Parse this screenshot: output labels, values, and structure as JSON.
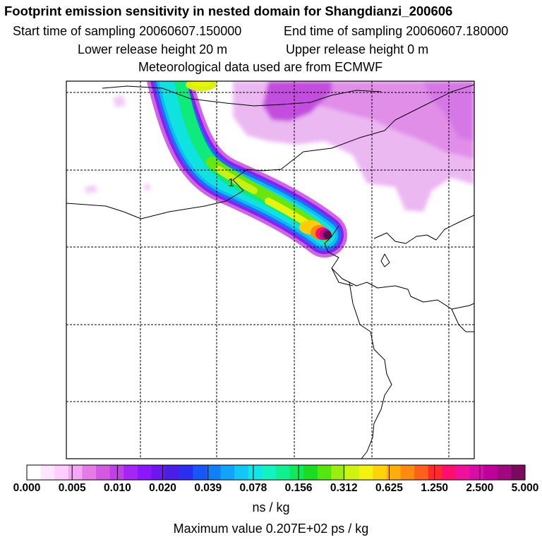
{
  "header": {
    "title": "Footprint emission sensitivity in nested domain for Shangdianzi_200606",
    "start_time": "Start time of sampling 20060607.150000",
    "end_time": "End time of sampling 20060607.180000",
    "lower_release": "Lower release height   20 m",
    "upper_release": "Upper release height    0 m",
    "met_source": "Meteorological data used are from ECMWF"
  },
  "map": {
    "contour_label": "1"
  },
  "legend": {
    "colors": [
      "#ffffff",
      "#ffe6ff",
      "#ffcdff",
      "#f5a6f5",
      "#e57ce6",
      "#d35ae0",
      "#c03fe8",
      "#a525f5",
      "#8b18fb",
      "#6f16f0",
      "#4b1ee8",
      "#2b2ef2",
      "#1557f8",
      "#1180f8",
      "#0fa5fb",
      "#10c7f5",
      "#10e6e6",
      "#10f5c0",
      "#10f090",
      "#10ea5a",
      "#18dd20",
      "#55e60e",
      "#9cee0e",
      "#cdf30e",
      "#f3f30e",
      "#ffd20a",
      "#ffae0c",
      "#ff8a12",
      "#ff601a",
      "#ff2a2e",
      "#ff0e6e",
      "#f0109c",
      "#d80ca8",
      "#c0009a",
      "#a0087e",
      "#7a0a5e"
    ],
    "tick_labels": [
      "0.000",
      "0.005",
      "0.010",
      "0.020",
      "0.039",
      "0.078",
      "0.156",
      "0.312",
      "0.625",
      "1.250",
      "2.500",
      "5.000"
    ],
    "unit": "ns / kg",
    "max_value": "Maximum value  0.207E+02 ps / kg"
  }
}
